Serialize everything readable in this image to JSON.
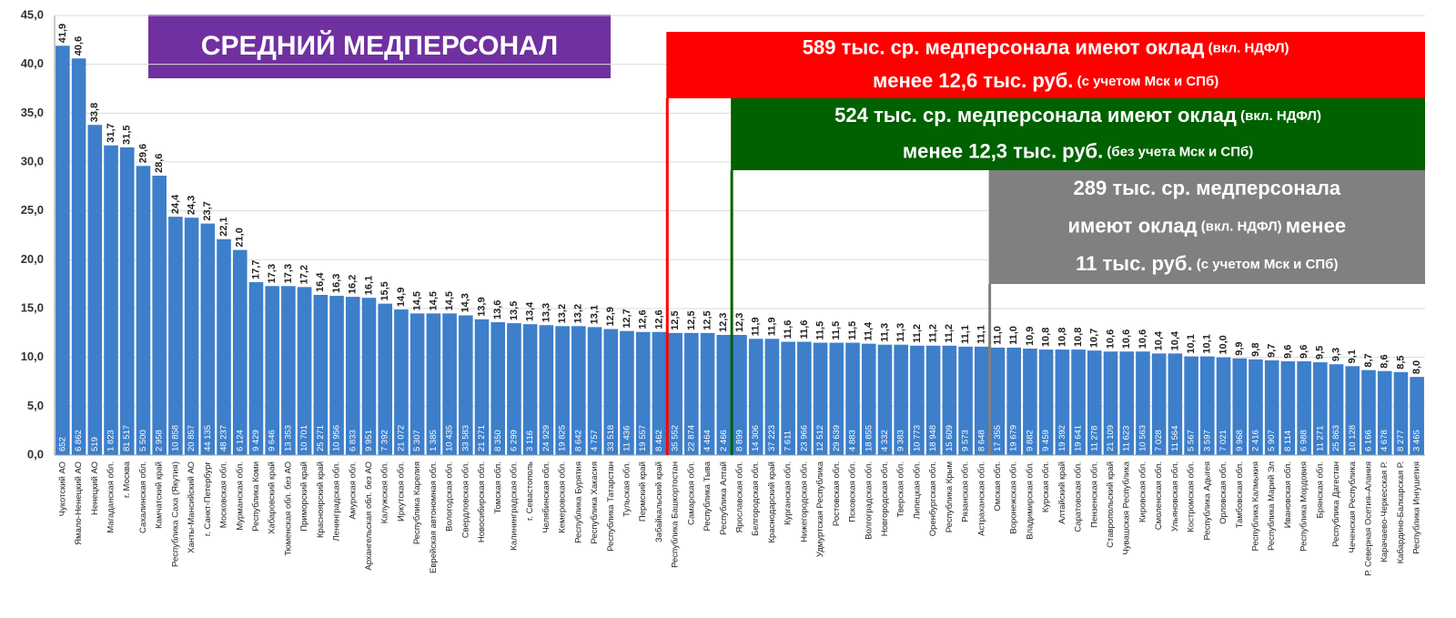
{
  "chart_data": {
    "type": "bar",
    "title": "СРЕДНИЙ МЕДПЕРСОНАЛ",
    "color": "#3d7fcb",
    "grid": true,
    "ylim": [
      0,
      45
    ],
    "yticks": [
      {
        "value": 0,
        "label": "0,0"
      },
      {
        "value": 5,
        "label": "5,0"
      },
      {
        "value": 10,
        "label": "10,0"
      },
      {
        "value": 15,
        "label": "15,0"
      },
      {
        "value": 20,
        "label": "20,0"
      },
      {
        "value": 25,
        "label": "25,0"
      },
      {
        "value": 30,
        "label": "30,0"
      },
      {
        "value": 35,
        "label": "35,0"
      },
      {
        "value": 40,
        "label": "40,0"
      },
      {
        "value": 45,
        "label": "45,0"
      }
    ],
    "categories": [
      "Чукотский АО",
      "Ямало-Ненецкий АО",
      "Ненецкий АО",
      "Магаданская обл.",
      "г. Москва",
      "Сахалинская обл.",
      "Камчатский край",
      "Республика Саха (Якутия)",
      "Ханты-Мансийский АО",
      "г. Санкт-Петербург",
      "Московская обл.",
      "Мурманская обл.",
      "Республика Коми",
      "Хабаровский край",
      "Тюменская обл. без АО",
      "Приморский край",
      "Красноярский край",
      "Ленинградская обл.",
      "Амурская обл.",
      "Архангельская обл. без АО",
      "Калужская обл.",
      "Иркутская обл.",
      "Республика Карелия",
      "Еврейская автономная обл.",
      "Вологодская обл.",
      "Свердловская обл.",
      "Новосибирская обл.",
      "Томская обл.",
      "Калининградская обл.",
      "г. Севастополь",
      "Челябинская обл.",
      "Кемеровская обл.",
      "Республика Бурятия",
      "Республика Хакасия",
      "Республика Татарстан",
      "Тульская обл.",
      "Пермский край",
      "Забайкальский край",
      "Республика Башкортостан",
      "Самарская обл.",
      "Республика Тыва",
      "Республика Алтай",
      "Ярославская обл.",
      "Белгородская обл.",
      "Краснодарский край",
      "Курганская обл.",
      "Нижегородская обл.",
      "Удмуртская Республика",
      "Ростовская обл.",
      "Псковская обл.",
      "Волгоградская обл.",
      "Новгородская обл.",
      "Тверская обл.",
      "Липецкая обл.",
      "Оренбургская обл.",
      "Республика Крым",
      "Рязанская обл.",
      "Астраханская обл.",
      "Омская обл.",
      "Воронежская обл.",
      "Владимирская обл.",
      "Курская обл.",
      "Алтайский край",
      "Саратовская обл.",
      "Пензенская обл.",
      "Ставропольский край",
      "Чувашская Республика",
      "Кировская обл.",
      "Смоленская обл.",
      "Ульяновская обл.",
      "Костромская обл.",
      "Республика Адыгея",
      "Орловская обл.",
      "Тамбовская обл.",
      "Республика Калмыкия",
      "Республика Марий Эл",
      "Ивановская обл.",
      "Республика Мордовия",
      "Брянская обл.",
      "Республика Дагестан",
      "Чеченская Республика",
      "Р. Северная Осетия–Алания",
      "Карачаево-Черкесская Р.",
      "Кабардино-Балкарская Р.",
      "Республика Ингушетия"
    ],
    "values": [
      41.9,
      40.6,
      33.8,
      31.7,
      31.5,
      29.6,
      28.6,
      24.4,
      24.3,
      23.7,
      22.1,
      21.0,
      17.7,
      17.3,
      17.3,
      17.2,
      16.4,
      16.3,
      16.2,
      16.1,
      15.5,
      14.9,
      14.5,
      14.5,
      14.5,
      14.3,
      13.9,
      13.6,
      13.5,
      13.4,
      13.3,
      13.2,
      13.2,
      13.1,
      12.9,
      12.7,
      12.6,
      12.6,
      12.5,
      12.5,
      12.5,
      12.3,
      12.3,
      11.9,
      11.9,
      11.6,
      11.6,
      11.5,
      11.5,
      11.5,
      11.4,
      11.3,
      11.3,
      11.2,
      11.2,
      11.2,
      11.1,
      11.1,
      11.0,
      11.0,
      10.9,
      10.8,
      10.8,
      10.8,
      10.7,
      10.6,
      10.6,
      10.6,
      10.4,
      10.4,
      10.1,
      10.1,
      10.0,
      9.9,
      9.8,
      9.7,
      9.6,
      9.6,
      9.5,
      9.3,
      9.1,
      8.7,
      8.6,
      8.5,
      8.0
    ],
    "value_labels": [
      "41,9",
      "40,6",
      "33,8",
      "31,7",
      "31,5",
      "29,6",
      "28,6",
      "24,4",
      "24,3",
      "23,7",
      "22,1",
      "21,0",
      "17,7",
      "17,3",
      "17,3",
      "17,2",
      "16,4",
      "16,3",
      "16,2",
      "16,1",
      "15,5",
      "14,9",
      "14,5",
      "14,5",
      "14,5",
      "14,3",
      "13,9",
      "13,6",
      "13,5",
      "13,4",
      "13,3",
      "13,2",
      "13,2",
      "13,1",
      "12,9",
      "12,7",
      "12,6",
      "12,6",
      "12,5",
      "12,5",
      "12,5",
      "12,3",
      "12,3",
      "11,9",
      "11,9",
      "11,6",
      "11,6",
      "11,5",
      "11,5",
      "11,5",
      "11,4",
      "11,3",
      "11,3",
      "11,2",
      "11,2",
      "11,2",
      "11,1",
      "11,1",
      "11,0",
      "11,0",
      "10,9",
      "10,8",
      "10,8",
      "10,8",
      "10,7",
      "10,6",
      "10,6",
      "10,6",
      "10,4",
      "10,4",
      "10,1",
      "10,1",
      "10,0",
      "9,9",
      "9,8",
      "9,7",
      "9,6",
      "9,6",
      "9,5",
      "9,3",
      "9,1",
      "8,7",
      "8,6",
      "8,5",
      "8,0"
    ],
    "counts": [
      652,
      6862,
      519,
      1823,
      81517,
      5500,
      2958,
      10858,
      20857,
      44135,
      48237,
      6124,
      9429,
      9646,
      13353,
      10701,
      25271,
      10956,
      6833,
      9951,
      7392,
      21072,
      5307,
      1385,
      10435,
      33583,
      21271,
      8350,
      6299,
      3116,
      24929,
      19825,
      8642,
      4757,
      33518,
      11436,
      19557,
      8462,
      35552,
      22874,
      4464,
      2466,
      8899,
      14306,
      37223,
      7611,
      23966,
      12512,
      29639,
      4883,
      18855,
      4332,
      9383,
      10773,
      18948,
      15609,
      9573,
      8648,
      17355,
      19679,
      9882,
      9459,
      19392,
      19641,
      11278,
      21109,
      11623,
      10563,
      7028,
      11564,
      5567,
      3597,
      7021,
      9968,
      2416,
      5907,
      8114,
      6988,
      11271,
      25863,
      10128,
      6166,
      4678,
      8277,
      3465
    ],
    "count_labels": [
      "652",
      "6 862",
      "519",
      "1 823",
      "81 517",
      "5 500",
      "2 958",
      "10 858",
      "20 857",
      "44 135",
      "48 237",
      "6 124",
      "9 429",
      "9 646",
      "13 353",
      "10 701",
      "25 271",
      "10 956",
      "6 833",
      "9 951",
      "7 392",
      "21 072",
      "5 307",
      "1 385",
      "10 435",
      "33 583",
      "21 271",
      "8 350",
      "6 299",
      "3 116",
      "24 929",
      "19 825",
      "8 642",
      "4 757",
      "33 518",
      "11 436",
      "19 557",
      "8 462",
      "35 552",
      "22 874",
      "4 464",
      "2 466",
      "8 899",
      "14 306",
      "37 223",
      "7 611",
      "23 966",
      "12 512",
      "29 639",
      "4 883",
      "18 855",
      "4 332",
      "9 383",
      "10 773",
      "18 948",
      "15 609",
      "9 573",
      "8 648",
      "17 355",
      "19 679",
      "9 882",
      "9 459",
      "19 392",
      "19 641",
      "11 278",
      "21 109",
      "11 623",
      "10 563",
      "7 028",
      "11 564",
      "5 567",
      "3 597",
      "7 021",
      "9 968",
      "2 416",
      "5 907",
      "8 114",
      "6 988",
      "11 271",
      "25 863",
      "10 128",
      "6 166",
      "4 678",
      "8 277",
      "3 465"
    ],
    "annotations": [
      {
        "color": "#ff0000",
        "lines": [
          [
            {
              "text": "589 тыс. ср. медперсонала имеют оклад",
              "size": "big"
            },
            {
              "text": " (вкл. НДФЛ)",
              "size": "small"
            }
          ],
          [
            {
              "text": "менее 12,6 тыс. руб.",
              "size": "big"
            },
            {
              "text": " (с учетом Мск и СПб)",
              "size": "small"
            }
          ]
        ]
      },
      {
        "color": "#006100",
        "lines": [
          [
            {
              "text": "524 тыс. ср. медперсонала имеют оклад",
              "size": "big"
            },
            {
              "text": " (вкл. НДФЛ)",
              "size": "small"
            }
          ],
          [
            {
              "text": "менее 12,3 тыс. руб.",
              "size": "big"
            },
            {
              "text": " (без учета Мск и СПб)",
              "size": "small"
            }
          ]
        ]
      },
      {
        "color": "#808080",
        "lines": [
          [
            {
              "text": "289 тыс. ср. медперсонала",
              "size": "big"
            }
          ],
          [
            {
              "text": "имеют оклад",
              "size": "big"
            },
            {
              "text": " (вкл. НДФЛ) ",
              "size": "small"
            },
            {
              "text": "менее",
              "size": "big"
            }
          ],
          [
            {
              "text": "11 тыс. руб.",
              "size": "big"
            },
            {
              "text": " (с учетом Мск и СПб)",
              "size": "small"
            }
          ]
        ]
      }
    ]
  }
}
